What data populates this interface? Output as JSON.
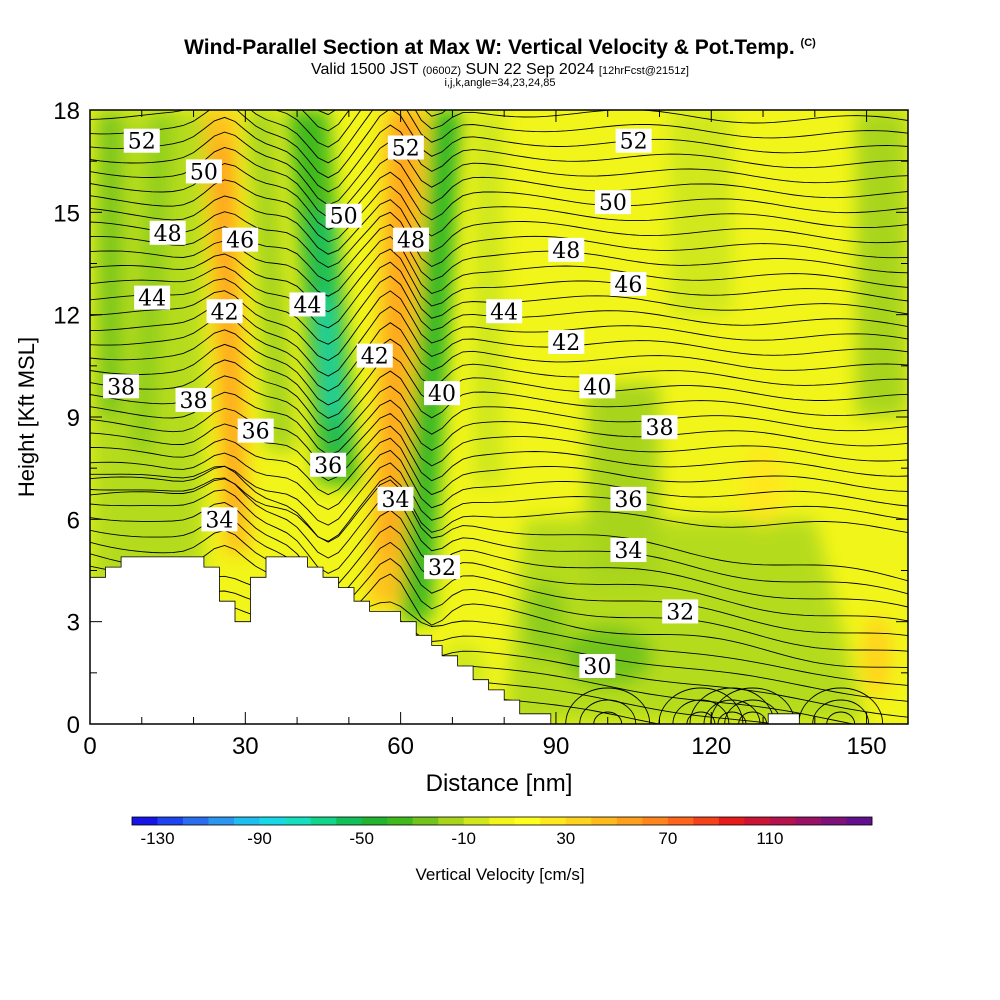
{
  "title": {
    "main": "Wind-Parallel Section at Max W: Vertical Velocity & Pot.Temp.",
    "copyright": "(C)",
    "valid_prefix": "Valid 1500 JST",
    "utc": "(0600Z)",
    "valid_date": "SUN 22 Sep 2024",
    "forecast": "[12hrFcst@2151z]",
    "params": "i,j,k,angle=34,23,24,85"
  },
  "chart_data": {
    "type": "heatmap",
    "xlabel": "Distance [nm]",
    "ylabel": "Height [Kft MSL]",
    "xlim": [
      0,
      158
    ],
    "ylim": [
      0,
      18
    ],
    "x_ticks": [
      0,
      30,
      60,
      90,
      120,
      150
    ],
    "y_ticks": [
      0,
      3,
      6,
      9,
      12,
      15,
      18
    ],
    "colorbar": {
      "label": "Vertical Velocity [cm/s]",
      "tick_labels": [
        "-130",
        "-90",
        "-50",
        "-10",
        "30",
        "70",
        "110"
      ],
      "tick_values": [
        -130,
        -90,
        -50,
        -10,
        30,
        70,
        110
      ],
      "range": [
        -140,
        150
      ],
      "colors": [
        "#1515e8",
        "#1e44f0",
        "#2a6ef0",
        "#2b96f0",
        "#1fbdf0",
        "#17d8e6",
        "#14e0c0",
        "#10d58a",
        "#12c05a",
        "#1fb52e",
        "#3fb91c",
        "#72c41b",
        "#a8d51a",
        "#d0e81a",
        "#f2f51a",
        "#ffff1e",
        "#ffe81c",
        "#ffd21c",
        "#ffba1c",
        "#ffa01c",
        "#ff851c",
        "#ff661c",
        "#f5411c",
        "#e61c1c",
        "#cc1535",
        "#b5124e",
        "#9a1265",
        "#7f127a",
        "#62108c"
      ]
    },
    "series": [
      {
        "name": "Potential temperature isentropes",
        "contour_labels": [
          {
            "value": "52",
            "x": 10,
            "y": 17.1
          },
          {
            "value": "52",
            "x": 61,
            "y": 16.9
          },
          {
            "value": "52",
            "x": 105,
            "y": 17.1
          },
          {
            "value": "50",
            "x": 22,
            "y": 16.2
          },
          {
            "value": "50",
            "x": 49,
            "y": 14.9
          },
          {
            "value": "50",
            "x": 101,
            "y": 15.3
          },
          {
            "value": "48",
            "x": 15,
            "y": 14.4
          },
          {
            "value": "48",
            "x": 62,
            "y": 14.2
          },
          {
            "value": "48",
            "x": 92,
            "y": 13.9
          },
          {
            "value": "46",
            "x": 29,
            "y": 14.2
          },
          {
            "value": "46",
            "x": 104,
            "y": 12.9
          },
          {
            "value": "44",
            "x": 12,
            "y": 12.5
          },
          {
            "value": "44",
            "x": 42,
            "y": 12.3
          },
          {
            "value": "44",
            "x": 80,
            "y": 12.1
          },
          {
            "value": "42",
            "x": 26,
            "y": 12.1
          },
          {
            "value": "42",
            "x": 55,
            "y": 10.8
          },
          {
            "value": "42",
            "x": 92,
            "y": 11.2
          },
          {
            "value": "40",
            "x": 68,
            "y": 9.7
          },
          {
            "value": "40",
            "x": 98,
            "y": 9.9
          },
          {
            "value": "38",
            "x": 6,
            "y": 9.9
          },
          {
            "value": "38",
            "x": 20,
            "y": 9.5
          },
          {
            "value": "38",
            "x": 110,
            "y": 8.7
          },
          {
            "value": "36",
            "x": 32,
            "y": 8.6
          },
          {
            "value": "36",
            "x": 46,
            "y": 7.6
          },
          {
            "value": "36",
            "x": 104,
            "y": 6.6
          },
          {
            "value": "34",
            "x": 25,
            "y": 6.0
          },
          {
            "value": "34",
            "x": 59,
            "y": 6.6
          },
          {
            "value": "34",
            "x": 104,
            "y": 5.1
          },
          {
            "value": "32",
            "x": 68,
            "y": 4.6
          },
          {
            "value": "32",
            "x": 114,
            "y": 3.3
          },
          {
            "value": "30",
            "x": 98,
            "y": 1.7
          }
        ]
      }
    ],
    "terrain_kft": [
      [
        0,
        4.3
      ],
      [
        3,
        4.3
      ],
      [
        3,
        4.6
      ],
      [
        6,
        4.6
      ],
      [
        6,
        4.9
      ],
      [
        9,
        4.9
      ],
      [
        22,
        4.9
      ],
      [
        22,
        4.6
      ],
      [
        25,
        4.6
      ],
      [
        25,
        3.6
      ],
      [
        28,
        3.6
      ],
      [
        28,
        3.0
      ],
      [
        31,
        3.0
      ],
      [
        31,
        4.3
      ],
      [
        34,
        4.3
      ],
      [
        34,
        4.9
      ],
      [
        42,
        4.9
      ],
      [
        42,
        4.6
      ],
      [
        45,
        4.6
      ],
      [
        45,
        4.3
      ],
      [
        48,
        4.3
      ],
      [
        48,
        4.0
      ],
      [
        51,
        4.0
      ],
      [
        51,
        3.6
      ],
      [
        54,
        3.6
      ],
      [
        54,
        3.3
      ],
      [
        60,
        3.3
      ],
      [
        60,
        3.0
      ],
      [
        63,
        3.0
      ],
      [
        63,
        2.6
      ],
      [
        66,
        2.6
      ],
      [
        66,
        2.3
      ],
      [
        68,
        2.3
      ],
      [
        68,
        2.0
      ],
      [
        71,
        2.0
      ],
      [
        71,
        1.7
      ],
      [
        74,
        1.7
      ],
      [
        74,
        1.3
      ],
      [
        77,
        1.3
      ],
      [
        77,
        1.0
      ],
      [
        80,
        1.0
      ],
      [
        80,
        0.7
      ],
      [
        83,
        0.7
      ],
      [
        83,
        0.3
      ],
      [
        89,
        0.3
      ],
      [
        89,
        0.0
      ],
      [
        131,
        0.0
      ],
      [
        131,
        0.3
      ],
      [
        137,
        0.3
      ],
      [
        137,
        0.0
      ],
      [
        158,
        0.0
      ],
      [
        158,
        0.0
      ]
    ]
  }
}
